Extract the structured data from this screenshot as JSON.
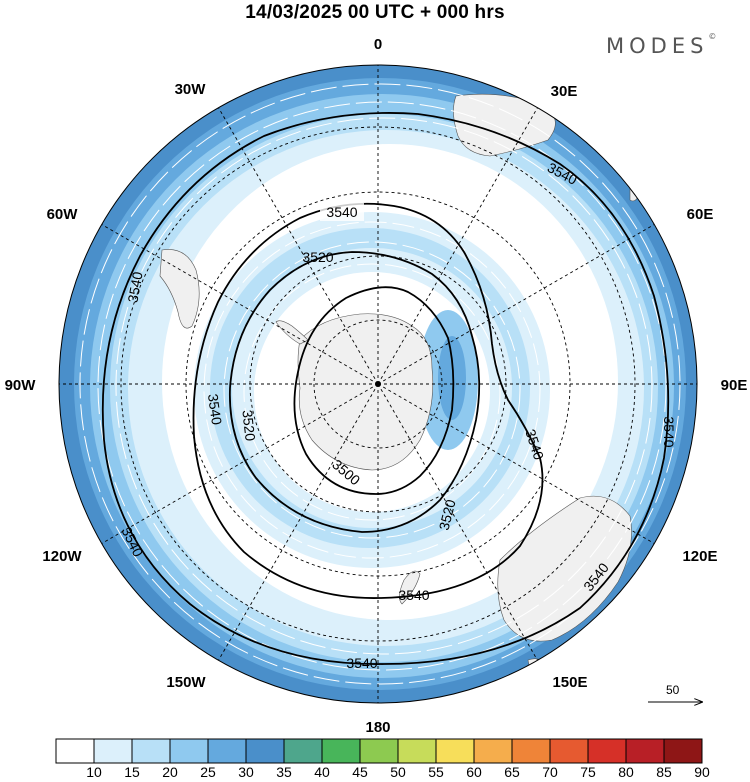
{
  "title": "14/03/2025  00 UTC  + 000 hrs",
  "brand": "MODES",
  "brand_mark": "©",
  "longitude_labels": [
    "0",
    "30E",
    "60E",
    "90E",
    "120E",
    "150E",
    "180",
    "150W",
    "120W",
    "90W",
    "60W",
    "30W"
  ],
  "contour_levels": [
    {
      "value": "3500",
      "labels": [
        "3500"
      ]
    },
    {
      "value": "3520",
      "labels": [
        "3520",
        "3520",
        "3520"
      ]
    },
    {
      "value": "3540",
      "labels": [
        "3540",
        "3540",
        "3540",
        "3540",
        "3540",
        "3540",
        "3540",
        "3540",
        "3540",
        "3540"
      ]
    }
  ],
  "wind_scale": {
    "label": "50"
  },
  "colorbar": {
    "ticks": [
      "10",
      "15",
      "20",
      "25",
      "30",
      "35",
      "40",
      "45",
      "50",
      "55",
      "60",
      "65",
      "70",
      "75",
      "80",
      "85",
      "90"
    ],
    "colors": [
      "#ffffff",
      "#dcf0fb",
      "#b8e0f7",
      "#8fc9ef",
      "#64a9de",
      "#4a8fca",
      "#4ea68c",
      "#48b55a",
      "#8dca50",
      "#c7dc5a",
      "#f7de5a",
      "#f5ad4c",
      "#ef8438",
      "#e65a30",
      "#d63028",
      "#b81f26",
      "#8e1616"
    ]
  },
  "colors": {
    "land": "#f0f0f0",
    "wind_light": "#dcf0fb",
    "wind_mid": "#b8e0f7",
    "wind_strong": "#8fc9ef",
    "wind_stronger": "#64a9de",
    "wind_max": "#4a8fca",
    "wind_jet": "#4ea68c"
  }
}
